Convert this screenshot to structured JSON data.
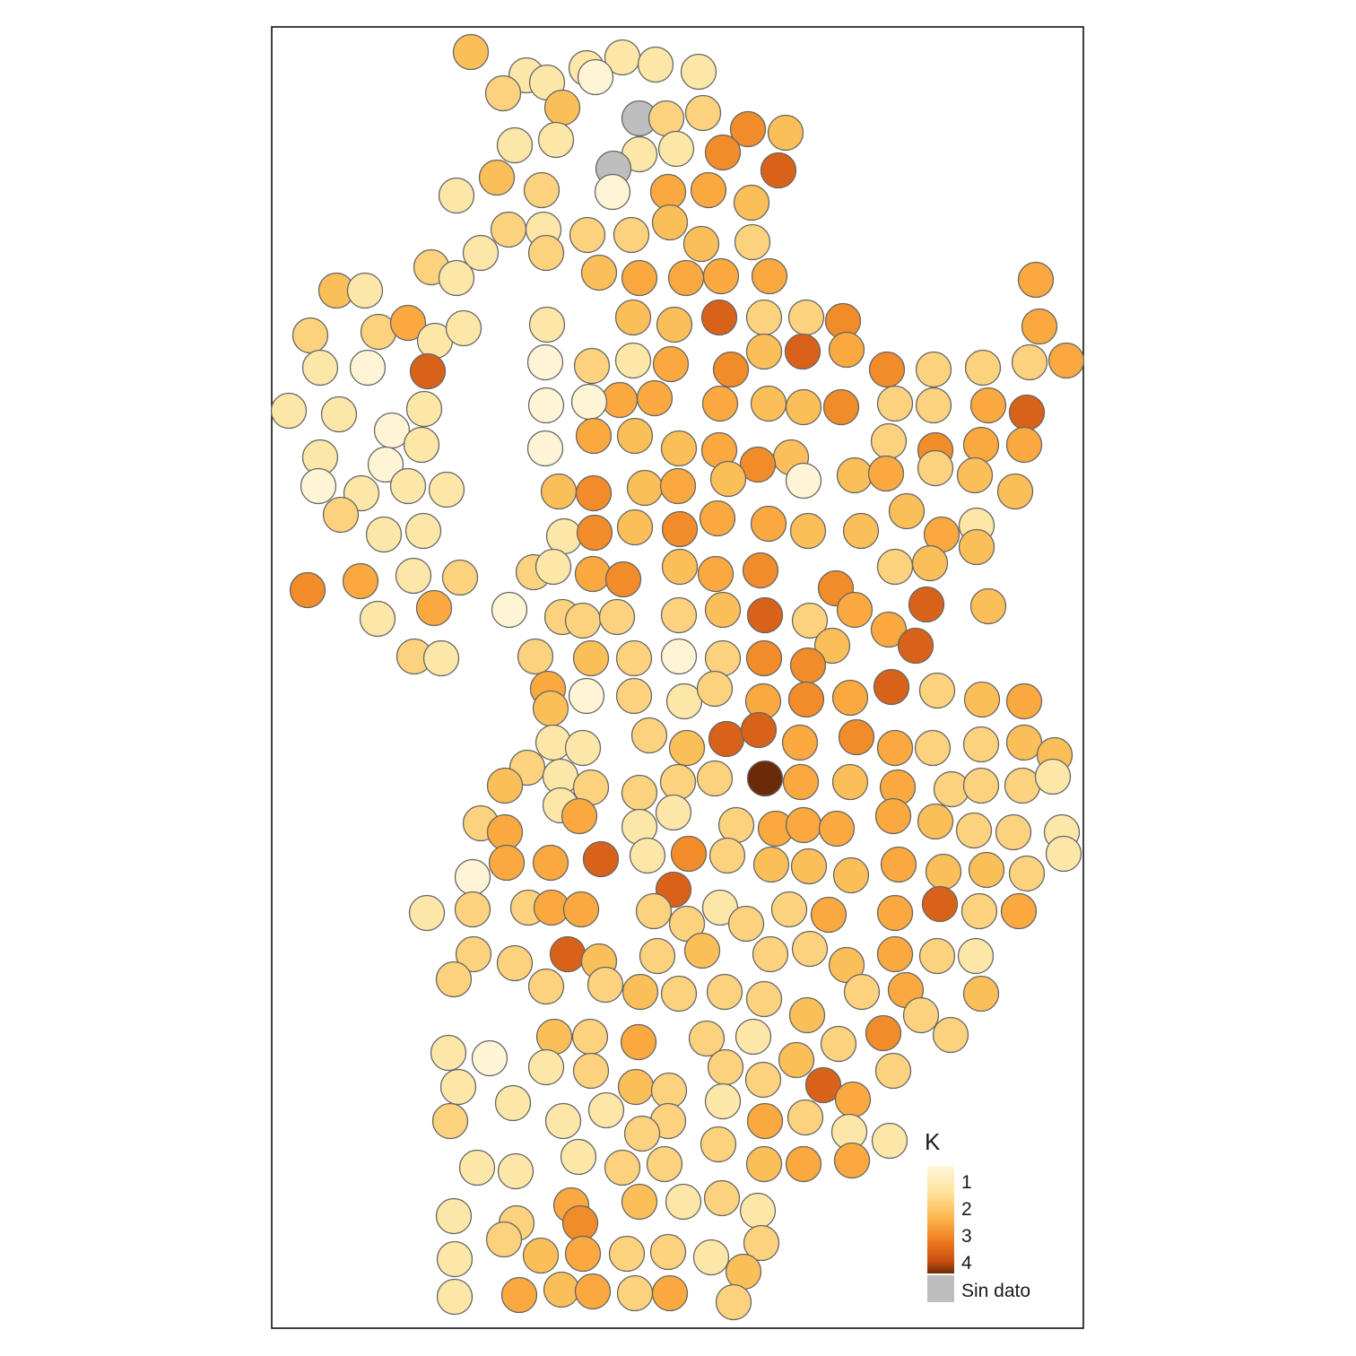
{
  "legend": {
    "title": "K",
    "ticks": [
      "1",
      "2",
      "3",
      "4"
    ],
    "na_label": "Sin dato",
    "na_color": "#bebebe",
    "gradient": [
      "#fff7dc",
      "#fee39a",
      "#fcb24a",
      "#ee7a22",
      "#cc5010",
      "#6b2a08"
    ]
  },
  "chart_data": {
    "type": "symbol-map",
    "legend_placement": "bottom-right",
    "color_scale": {
      "variable": "K",
      "min": 1,
      "max": 4
    },
    "missing_count": 2
  }
}
